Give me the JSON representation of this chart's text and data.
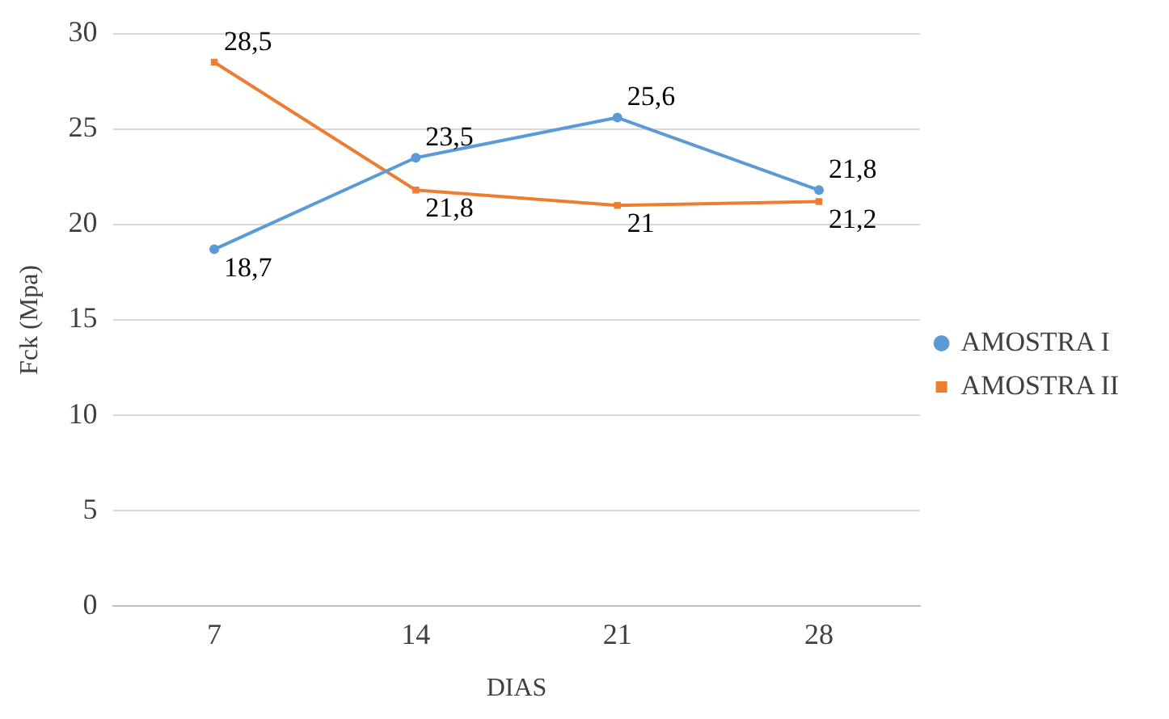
{
  "chart_data": {
    "type": "line",
    "xlabel": "DIAS",
    "ylabel": "Fck (Mpa)",
    "categories": [
      "7",
      "14",
      "21",
      "28"
    ],
    "series": [
      {
        "name": "AMOSTRA I",
        "color": "#5b9bd5",
        "marker": "circle",
        "values": [
          18.7,
          23.5,
          25.6,
          21.8
        ],
        "value_labels": [
          "18,7",
          "23,5",
          "25,6",
          "21,8"
        ]
      },
      {
        "name": "AMOSTRA II",
        "color": "#ed7d31",
        "marker": "square",
        "values": [
          28.5,
          21.8,
          21,
          21.2
        ],
        "value_labels": [
          "28,5",
          "21,8",
          "21",
          "21,2"
        ]
      }
    ],
    "ylim": [
      0,
      30
    ],
    "yticks": [
      0,
      5,
      10,
      15,
      20,
      25,
      30
    ],
    "grid": "y",
    "legend": "right"
  }
}
